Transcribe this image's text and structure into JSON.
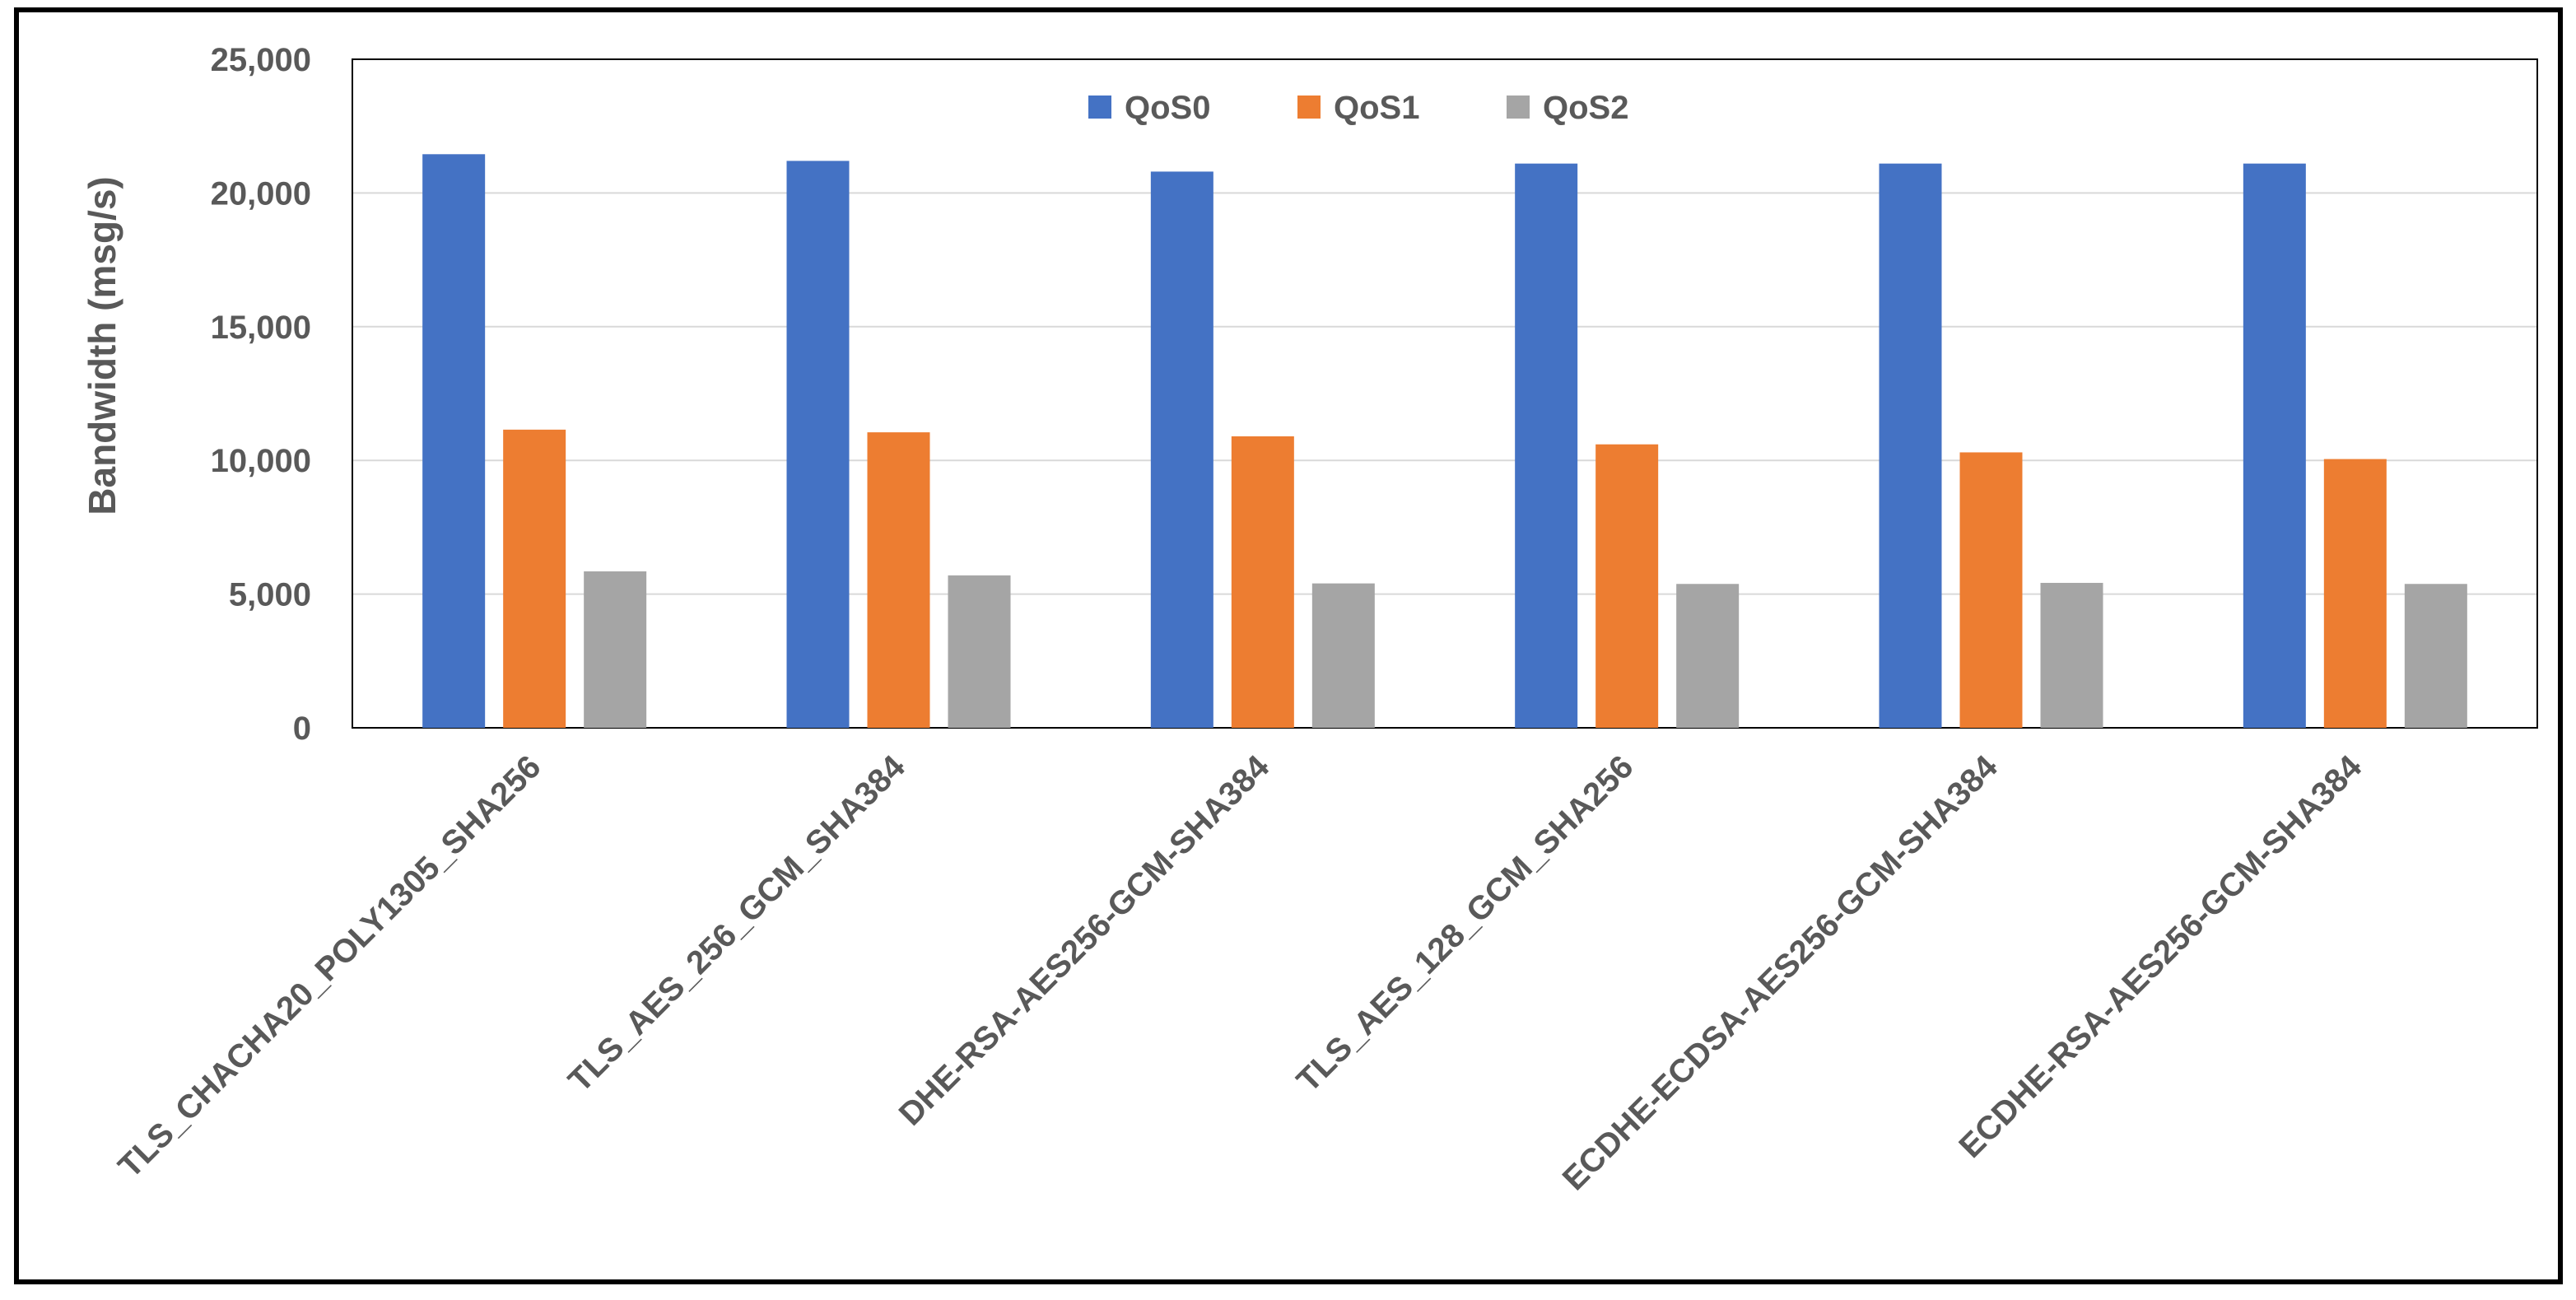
{
  "chart_data": {
    "type": "bar",
    "title": "",
    "ylabel": "Bandwidth (msg/s)",
    "xlabel": "",
    "ylim": [
      0,
      25000
    ],
    "yticks": [
      0,
      5000,
      10000,
      15000,
      20000,
      25000
    ],
    "ytick_labels": [
      "0",
      "5,000",
      "10,000",
      "15,000",
      "20,000",
      "25,000"
    ],
    "grid": true,
    "legend_position": "top-center",
    "categories": [
      "TLS_CHACHA20_POLY1305_SHA256",
      "TLS_AES_256_GCM_SHA384",
      "DHE-RSA-AES256-GCM-SHA384",
      "TLS_AES_128_GCM_SHA256",
      "ECDHE-ECDSA-AES256-GCM-SHA384",
      "ECDHE-RSA-AES256-GCM-SHA384"
    ],
    "series": [
      {
        "name": "QoS0",
        "color": "#4472C4",
        "values": [
          21450,
          21200,
          20800,
          21100,
          21100,
          21100
        ]
      },
      {
        "name": "QoS1",
        "color": "#ED7D31",
        "values": [
          11150,
          11050,
          10900,
          10600,
          10300,
          10050
        ]
      },
      {
        "name": "QoS2",
        "color": "#A5A5A5",
        "values": [
          5850,
          5700,
          5400,
          5380,
          5420,
          5380
        ]
      }
    ]
  }
}
